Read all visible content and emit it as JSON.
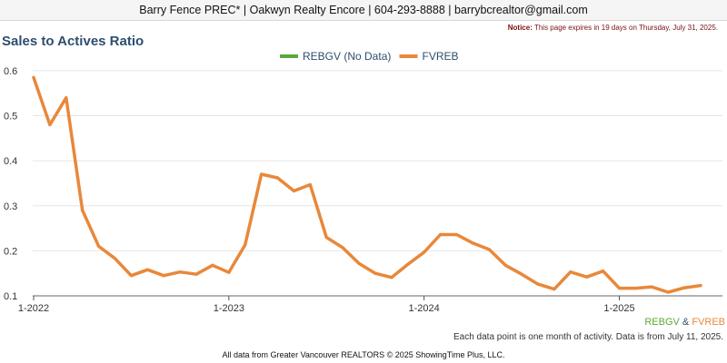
{
  "header": {
    "contact": "Barry Fence PREC* | Oakwyn Realty Encore | 604-293-8888 | barrybcrealtor@gmail.com",
    "notice_label": "Notice:",
    "notice_text": "This page expires in 19 days on Thursday, July 31, 2025."
  },
  "board_key": {
    "a": "REBGV",
    "sep": "&",
    "b": "FVREB",
    "a_color": "#5aa83a",
    "sep_color": "#2c4f6e",
    "b_color": "#e8883a"
  },
  "footnote": "Each data point is one month of activity. Data is from July 11, 2025.",
  "credit": "All data from Greater Vancouver REALTORS © 2025 ShowingTime Plus, LLC.",
  "chart_data": {
    "type": "line",
    "title": "Sales to Actives Ratio",
    "xlabel": "",
    "ylabel": "",
    "ylim": [
      0.1,
      0.62
    ],
    "yticks": [
      "0.1",
      "0.2",
      "0.3",
      "0.4",
      "0.5",
      "0.6"
    ],
    "xticks": [
      "1-2022",
      "1-2023",
      "1-2024",
      "1-2025"
    ],
    "legend": [
      {
        "name": "REBGV (No Data)",
        "color": "#5aa83a"
      },
      {
        "name": "FVREB",
        "color": "#e8883a"
      }
    ],
    "legend_position": "top-center",
    "grid": true,
    "x": [
      "2022-01",
      "2022-02",
      "2022-03",
      "2022-04",
      "2022-05",
      "2022-06",
      "2022-07",
      "2022-08",
      "2022-09",
      "2022-10",
      "2022-11",
      "2022-12",
      "2023-01",
      "2023-02",
      "2023-03",
      "2023-04",
      "2023-05",
      "2023-06",
      "2023-07",
      "2023-08",
      "2023-09",
      "2023-10",
      "2023-11",
      "2023-12",
      "2024-01",
      "2024-02",
      "2024-03",
      "2024-04",
      "2024-05",
      "2024-06",
      "2024-07",
      "2024-08",
      "2024-09",
      "2024-10",
      "2024-11",
      "2024-12",
      "2025-01",
      "2025-02",
      "2025-03",
      "2025-04",
      "2025-05",
      "2025-06"
    ],
    "series": [
      {
        "name": "FVREB",
        "color": "#e8883a",
        "values": [
          0.585,
          0.48,
          0.54,
          0.29,
          0.21,
          0.183,
          0.145,
          0.158,
          0.145,
          0.153,
          0.148,
          0.168,
          0.152,
          0.213,
          0.37,
          0.362,
          0.333,
          0.347,
          0.23,
          0.207,
          0.172,
          0.15,
          0.141,
          0.17,
          0.197,
          0.236,
          0.236,
          0.217,
          0.203,
          0.168,
          0.148,
          0.126,
          0.115,
          0.153,
          0.142,
          0.155,
          0.117,
          0.117,
          0.12,
          0.108,
          0.118,
          0.123
        ]
      }
    ]
  }
}
